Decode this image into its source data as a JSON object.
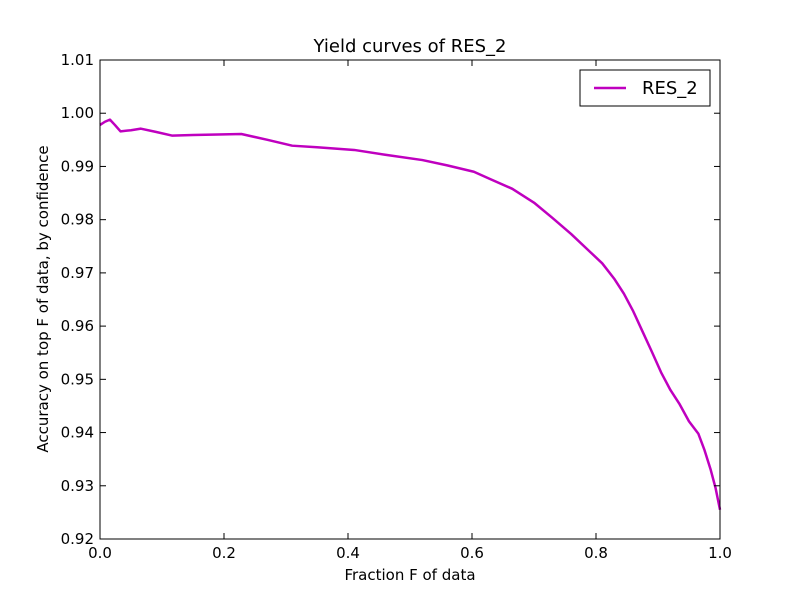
{
  "chart_data": {
    "type": "line",
    "title": "Yield curves of RES_2",
    "xlabel": "Fraction F of data",
    "ylabel": "Accuracy on top F of data, by confidence",
    "xlim": [
      0.0,
      1.0
    ],
    "ylim": [
      0.92,
      1.01
    ],
    "x_ticks": [
      0.0,
      0.2,
      0.4,
      0.6,
      0.8,
      1.0
    ],
    "x_tick_labels": [
      "0.0",
      "0.2",
      "0.4",
      "0.6",
      "0.8",
      "1.0"
    ],
    "y_ticks": [
      0.92,
      0.93,
      0.94,
      0.95,
      0.96,
      0.97,
      0.98,
      0.99,
      1.0,
      1.01
    ],
    "y_tick_labels": [
      "0.92",
      "0.93",
      "0.94",
      "0.95",
      "0.96",
      "0.97",
      "0.98",
      "0.99",
      "1.00",
      "1.01"
    ],
    "grid": false,
    "legend_position": "top-right",
    "series": [
      {
        "name": "RES_2",
        "color": "#bf00bf",
        "x": [
          0.0,
          0.008,
          0.016,
          0.024,
          0.033,
          0.05,
          0.066,
          0.09,
          0.116,
          0.15,
          0.19,
          0.228,
          0.27,
          0.31,
          0.35,
          0.41,
          0.46,
          0.52,
          0.56,
          0.603,
          0.63,
          0.665,
          0.7,
          0.73,
          0.76,
          0.79,
          0.81,
          0.83,
          0.845,
          0.86,
          0.875,
          0.89,
          0.905,
          0.92,
          0.935,
          0.95,
          0.965,
          0.975,
          0.985,
          0.993,
          1.0
        ],
        "y": [
          0.9978,
          0.9984,
          0.9988,
          0.9978,
          0.9966,
          0.9968,
          0.9971,
          0.9965,
          0.9958,
          0.9959,
          0.996,
          0.9961,
          0.995,
          0.9939,
          0.9936,
          0.9931,
          0.9922,
          0.9912,
          0.9902,
          0.989,
          0.9876,
          0.9858,
          0.9832,
          0.9803,
          0.9773,
          0.974,
          0.9718,
          0.9688,
          0.9661,
          0.9628,
          0.959,
          0.9552,
          0.9513,
          0.948,
          0.9453,
          0.9421,
          0.9398,
          0.9367,
          0.933,
          0.9295,
          0.9255
        ]
      }
    ]
  }
}
